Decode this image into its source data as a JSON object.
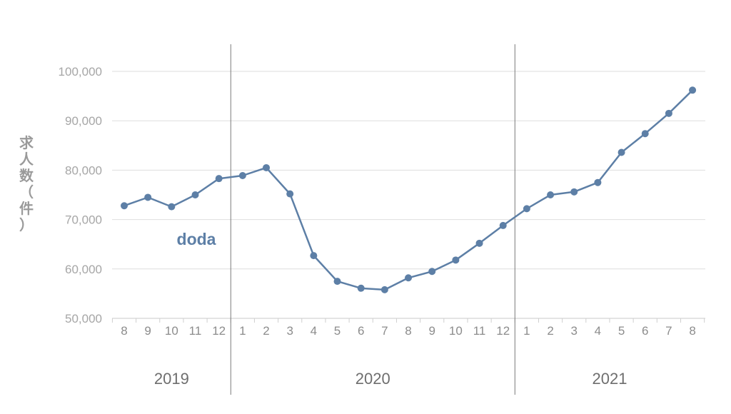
{
  "chart_data": {
    "type": "line",
    "ylabel": "求人数（件）",
    "ylim": [
      50000,
      100000
    ],
    "yticks": [
      50000,
      60000,
      70000,
      80000,
      90000,
      100000
    ],
    "ytick_labels": [
      "50,000",
      "60,000",
      "70,000",
      "80,000",
      "90,000",
      "100,000"
    ],
    "grid": true,
    "categories": [
      "8",
      "9",
      "10",
      "11",
      "12",
      "1",
      "2",
      "3",
      "4",
      "5",
      "6",
      "7",
      "8",
      "9",
      "10",
      "11",
      "12",
      "1",
      "2",
      "3",
      "4",
      "5",
      "6",
      "7",
      "8"
    ],
    "year_groups": [
      {
        "label": "2019",
        "months": [
          "8",
          "9",
          "10",
          "11",
          "12"
        ]
      },
      {
        "label": "2020",
        "months": [
          "1",
          "2",
          "3",
          "4",
          "5",
          "6",
          "7",
          "8",
          "9",
          "10",
          "11",
          "12"
        ]
      },
      {
        "label": "2021",
        "months": [
          "1",
          "2",
          "3",
          "4",
          "5",
          "6",
          "7",
          "8"
        ]
      }
    ],
    "series": [
      {
        "name": "doda",
        "color": "#5d7fa6",
        "values": [
          72800,
          74500,
          72600,
          75000,
          78300,
          78900,
          80500,
          75200,
          62700,
          57500,
          56100,
          55800,
          58200,
          59500,
          61800,
          65200,
          68800,
          72200,
          75000,
          75600,
          77500,
          83600,
          87400,
          91500,
          96200
        ]
      }
    ]
  }
}
